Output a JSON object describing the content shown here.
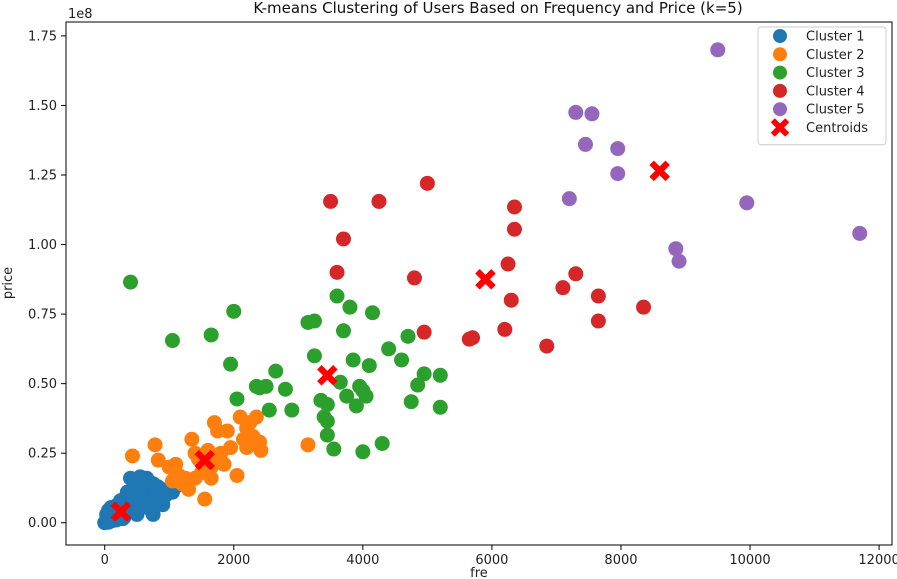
{
  "chart_data": {
    "type": "scatter",
    "title": "K-means Clustering of Users Based on Frequency and Price (k=5)",
    "xlabel": "fre",
    "ylabel": "price",
    "y_offset_text": "1e8",
    "xlim": [
      -600,
      12200
    ],
    "ylim": [
      -0.08,
      1.8
    ],
    "x_ticks": [
      0,
      2000,
      4000,
      6000,
      8000,
      10000,
      12000
    ],
    "x_tick_labels": [
      "0",
      "2000",
      "4000",
      "6000",
      "8000",
      "10000",
      "12000"
    ],
    "y_ticks": [
      0,
      0.25,
      0.5,
      0.75,
      1.0,
      1.25,
      1.5,
      1.75
    ],
    "y_tick_labels": [
      "0.00",
      "0.25",
      "0.50",
      "0.75",
      "1.00",
      "1.25",
      "1.50",
      "1.75"
    ],
    "grid": false,
    "legend_position": "top-right",
    "series": [
      {
        "name": "Cluster 1",
        "color": "#1f77b4",
        "points": [
          [
            0,
            0.0
          ],
          [
            20,
            0.005
          ],
          [
            40,
            0.01
          ],
          [
            60,
            0.002
          ],
          [
            80,
            0.015
          ],
          [
            100,
            0.02
          ],
          [
            120,
            0.008
          ],
          [
            150,
            0.03
          ],
          [
            180,
            0.01
          ],
          [
            200,
            0.04
          ],
          [
            220,
            0.02
          ],
          [
            250,
            0.05
          ],
          [
            280,
            0.015
          ],
          [
            300,
            0.06
          ],
          [
            320,
            0.03
          ],
          [
            350,
            0.08
          ],
          [
            380,
            0.04
          ],
          [
            400,
            0.1
          ],
          [
            420,
            0.06
          ],
          [
            450,
            0.12
          ],
          [
            480,
            0.07
          ],
          [
            500,
            0.09
          ],
          [
            520,
            0.11
          ],
          [
            550,
            0.14
          ],
          [
            580,
            0.08
          ],
          [
            600,
            0.13
          ],
          [
            620,
            0.1
          ],
          [
            650,
            0.16
          ],
          [
            680,
            0.07
          ],
          [
            700,
            0.12
          ],
          [
            720,
            0.09
          ],
          [
            750,
            0.14
          ],
          [
            780,
            0.1
          ],
          [
            800,
            0.11
          ],
          [
            820,
            0.13
          ],
          [
            850,
            0.08
          ],
          [
            880,
            0.12
          ],
          [
            900,
            0.065
          ],
          [
            950,
            0.1
          ],
          [
            1000,
            0.12
          ],
          [
            1050,
            0.11
          ],
          [
            1100,
            0.13
          ],
          [
            400,
            0.16
          ],
          [
            550,
            0.165
          ],
          [
            650,
            0.155
          ],
          [
            150,
            0.05
          ],
          [
            250,
            0.08
          ],
          [
            350,
            0.11
          ],
          [
            450,
            0.09
          ],
          [
            600,
            0.06
          ],
          [
            700,
            0.05
          ],
          [
            800,
            0.065
          ],
          [
            300,
            0.02
          ],
          [
            500,
            0.03
          ],
          [
            100,
            0.055
          ],
          [
            30,
            0.03
          ],
          [
            60,
            0.045
          ],
          [
            200,
            0.065
          ],
          [
            750,
            0.03
          ],
          [
            900,
            0.09
          ]
        ]
      },
      {
        "name": "Cluster 2",
        "color": "#ff7f0e",
        "points": [
          [
            430,
            0.24
          ],
          [
            780,
            0.28
          ],
          [
            830,
            0.225
          ],
          [
            1000,
            0.2
          ],
          [
            1100,
            0.21
          ],
          [
            1150,
            0.17
          ],
          [
            1200,
            0.14
          ],
          [
            1300,
            0.12
          ],
          [
            1350,
            0.3
          ],
          [
            1400,
            0.25
          ],
          [
            1450,
            0.23
          ],
          [
            1500,
            0.18
          ],
          [
            1550,
            0.085
          ],
          [
            1600,
            0.26
          ],
          [
            1650,
            0.16
          ],
          [
            1700,
            0.36
          ],
          [
            1750,
            0.33
          ],
          [
            1800,
            0.25
          ],
          [
            1850,
            0.21
          ],
          [
            1900,
            0.33
          ],
          [
            1950,
            0.27
          ],
          [
            2050,
            0.17
          ],
          [
            2100,
            0.38
          ],
          [
            2150,
            0.3
          ],
          [
            2200,
            0.34
          ],
          [
            2250,
            0.36
          ],
          [
            2300,
            0.31
          ],
          [
            2350,
            0.38
          ],
          [
            2400,
            0.29
          ],
          [
            2420,
            0.26
          ],
          [
            3150,
            0.28
          ],
          [
            1250,
            0.16
          ],
          [
            1050,
            0.15
          ],
          [
            1650,
            0.2
          ],
          [
            2200,
            0.27
          ],
          [
            1400,
            0.16
          ],
          [
            1700,
            0.24
          ],
          [
            1600,
            0.19
          ]
        ]
      },
      {
        "name": "Cluster 3",
        "color": "#2ca02c",
        "points": [
          [
            400,
            0.865
          ],
          [
            1050,
            0.655
          ],
          [
            1650,
            0.675
          ],
          [
            1950,
            0.57
          ],
          [
            2000,
            0.76
          ],
          [
            2050,
            0.445
          ],
          [
            2350,
            0.49
          ],
          [
            2400,
            0.485
          ],
          [
            2500,
            0.49
          ],
          [
            2550,
            0.405
          ],
          [
            2650,
            0.545
          ],
          [
            2800,
            0.48
          ],
          [
            2900,
            0.405
          ],
          [
            3150,
            0.72
          ],
          [
            3250,
            0.725
          ],
          [
            3250,
            0.6
          ],
          [
            3350,
            0.44
          ],
          [
            3400,
            0.38
          ],
          [
            3450,
            0.425
          ],
          [
            3450,
            0.365
          ],
          [
            3450,
            0.315
          ],
          [
            3550,
            0.265
          ],
          [
            3600,
            0.815
          ],
          [
            3650,
            0.505
          ],
          [
            3700,
            0.69
          ],
          [
            3750,
            0.455
          ],
          [
            3800,
            0.775
          ],
          [
            3850,
            0.585
          ],
          [
            3900,
            0.42
          ],
          [
            3950,
            0.49
          ],
          [
            4000,
            0.255
          ],
          [
            4000,
            0.475
          ],
          [
            4050,
            0.455
          ],
          [
            4100,
            0.565
          ],
          [
            4150,
            0.755
          ],
          [
            4300,
            0.285
          ],
          [
            4400,
            0.625
          ],
          [
            4600,
            0.585
          ],
          [
            4700,
            0.67
          ],
          [
            4750,
            0.435
          ],
          [
            4850,
            0.495
          ],
          [
            4950,
            0.535
          ],
          [
            5200,
            0.53
          ],
          [
            5200,
            0.415
          ]
        ]
      },
      {
        "name": "Cluster 4",
        "color": "#d62728",
        "points": [
          [
            3500,
            1.155
          ],
          [
            3600,
            0.9
          ],
          [
            3700,
            1.02
          ],
          [
            4250,
            1.155
          ],
          [
            4800,
            0.88
          ],
          [
            4950,
            0.685
          ],
          [
            5000,
            1.22
          ],
          [
            5650,
            0.66
          ],
          [
            5700,
            0.665
          ],
          [
            6200,
            0.695
          ],
          [
            6250,
            0.93
          ],
          [
            6300,
            0.8
          ],
          [
            6350,
            1.135
          ],
          [
            6350,
            1.055
          ],
          [
            6850,
            0.635
          ],
          [
            7100,
            0.845
          ],
          [
            7300,
            0.895
          ],
          [
            7650,
            0.815
          ],
          [
            7650,
            0.725
          ],
          [
            8350,
            0.775
          ]
        ]
      },
      {
        "name": "Cluster 5",
        "color": "#9467bd",
        "points": [
          [
            7200,
            1.165
          ],
          [
            7300,
            1.475
          ],
          [
            7450,
            1.36
          ],
          [
            7550,
            1.47
          ],
          [
            7950,
            1.345
          ],
          [
            7950,
            1.255
          ],
          [
            8850,
            0.985
          ],
          [
            8900,
            0.94
          ],
          [
            9500,
            1.7
          ],
          [
            9950,
            1.15
          ],
          [
            11700,
            1.04
          ]
        ]
      },
      {
        "name": "Centroids",
        "color": "#ff0000",
        "marker": "x",
        "points": [
          [
            250,
            0.04
          ],
          [
            1550,
            0.225
          ],
          [
            3450,
            0.53
          ],
          [
            5900,
            0.875
          ],
          [
            8600,
            1.265
          ]
        ]
      }
    ]
  }
}
